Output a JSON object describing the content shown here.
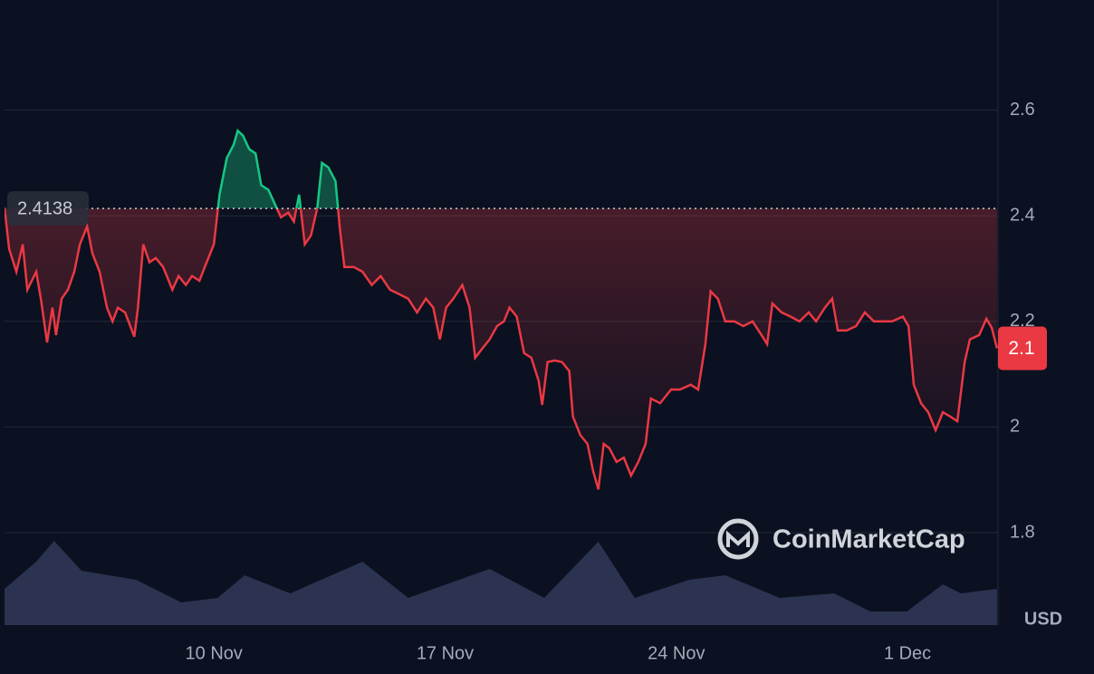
{
  "chart_data": {
    "type": "line",
    "x": [
      3.66,
      3.8,
      4.02,
      4.21,
      4.35,
      4.62,
      4.76,
      4.95,
      5.11,
      5.22,
      5.39,
      5.58,
      5.77,
      5.94,
      6.16,
      6.32,
      6.54,
      6.76,
      6.93,
      7.09,
      7.31,
      7.59,
      7.7,
      7.86,
      8.05,
      8.24,
      8.46,
      8.74,
      8.93,
      9.15,
      9.34,
      9.56,
      9.78,
      10.0,
      10.17,
      10.39,
      10.6,
      10.72,
      10.88,
      11.07,
      11.26,
      11.43,
      11.65,
      11.84,
      12.03,
      12.25,
      12.42,
      12.58,
      12.75,
      12.94,
      13.13,
      13.27,
      13.46,
      13.68,
      13.82,
      13.95,
      14.23,
      14.5,
      14.78,
      15.05,
      15.33,
      15.6,
      15.88,
      16.15,
      16.42,
      16.64,
      16.84,
      17.03,
      17.25,
      17.52,
      17.74,
      17.91,
      18.13,
      18.35,
      18.57,
      18.78,
      18.95,
      19.17,
      19.39,
      19.61,
      19.83,
      19.94,
      20.1,
      20.32,
      20.54,
      20.76,
      20.87,
      21.09,
      21.31,
      21.48,
      21.64,
      21.8,
      21.97,
      22.19,
      22.41,
      22.63,
      22.85,
      23.07,
      23.23,
      23.51,
      23.84,
      24.11,
      24.44,
      24.66,
      24.88,
      25.04,
      25.26,
      25.48,
      25.76,
      26.03,
      26.31,
      26.58,
      26.75,
      26.91,
      27.19,
      27.46,
      27.73,
      28.01,
      28.23,
      28.5,
      28.72,
      28.89,
      29.16,
      29.44,
      29.71,
      29.98,
      30.26,
      30.53,
      30.86,
      31.03,
      31.19,
      31.41,
      31.63,
      31.85,
      32.07,
      32.29,
      32.51,
      32.73,
      32.89,
      33.17,
      33.39,
      33.55,
      33.71
    ],
    "series": [
      {
        "color": "#ea3943",
        "values": [
          2.415,
          2.337,
          2.294,
          2.346,
          2.26,
          2.294,
          2.243,
          2.16,
          2.226,
          2.174,
          2.243,
          2.26,
          2.294,
          2.346,
          2.38,
          2.329,
          2.294,
          2.226,
          2.2,
          2.226,
          2.217,
          2.171,
          2.226,
          2.346,
          2.312,
          2.32,
          2.303,
          2.26,
          2.286,
          2.269,
          2.286,
          2.277,
          2.312,
          2.346,
          2.44,
          2.509,
          2.535,
          2.561,
          2.552,
          2.526,
          2.518,
          2.458,
          2.449,
          2.423,
          2.397,
          2.406,
          2.389,
          2.44,
          2.346,
          2.363,
          2.415,
          2.5,
          2.492,
          2.466,
          2.372,
          2.303,
          2.303,
          2.294,
          2.269,
          2.286,
          2.26,
          2.252,
          2.243,
          2.217,
          2.243,
          2.226,
          2.166,
          2.226,
          2.243,
          2.269,
          2.226,
          2.131,
          2.149,
          2.166,
          2.191,
          2.2,
          2.226,
          2.209,
          2.14,
          2.131,
          2.088,
          2.042,
          2.123,
          2.126,
          2.123,
          2.106,
          2.02,
          1.985,
          1.968,
          1.917,
          1.882,
          1.968,
          1.96,
          1.934,
          1.942,
          1.908,
          1.934,
          1.968,
          2.054,
          2.045,
          2.071,
          2.071,
          2.08,
          2.071,
          2.157,
          2.257,
          2.243,
          2.2,
          2.2,
          2.191,
          2.2,
          2.174,
          2.157,
          2.234,
          2.217,
          2.209,
          2.2,
          2.217,
          2.2,
          2.226,
          2.243,
          2.183,
          2.183,
          2.191,
          2.217,
          2.2,
          2.2,
          2.2,
          2.209,
          2.191,
          2.08,
          2.045,
          2.028,
          1.994,
          2.028,
          2.02,
          2.011,
          2.123,
          2.166,
          2.174,
          2.205,
          2.188,
          2.149
        ]
      }
    ],
    "color_above": "#16c784",
    "reference_line": 2.4138,
    "last_label": "2.1",
    "volume": {
      "color": "#2b3350",
      "x": [
        3.66,
        4.62,
        5.16,
        5.99,
        7.64,
        9.01,
        10.11,
        10.93,
        12.31,
        14.5,
        15.88,
        18.35,
        20.0,
        21.64,
        22.74,
        24.39,
        25.48,
        27.13,
        28.78,
        29.88,
        30.98,
        32.07,
        32.62,
        33.71
      ],
      "values": [
        40,
        70,
        93,
        60,
        50,
        25,
        30,
        55,
        35,
        70,
        30,
        62,
        30,
        92,
        30,
        50,
        55,
        30,
        35,
        15,
        15,
        45,
        35,
        40
      ],
      "ylim": [
        0,
        100
      ]
    },
    "xlim": [
      3.66,
      33.74
    ],
    "xticks": [
      {
        "value": 10,
        "label": "10 Nov"
      },
      {
        "value": 17,
        "label": "17 Nov"
      },
      {
        "value": 24,
        "label": "24 Nov"
      },
      {
        "value": 31,
        "label": "1 Dec"
      }
    ],
    "ylim": [
      1.625,
      2.8
    ],
    "yticks": [
      1.8,
      2.0,
      2.2,
      2.4,
      2.6
    ],
    "grid": true,
    "y_unit": "USD",
    "watermark": "CoinMarketCap"
  }
}
